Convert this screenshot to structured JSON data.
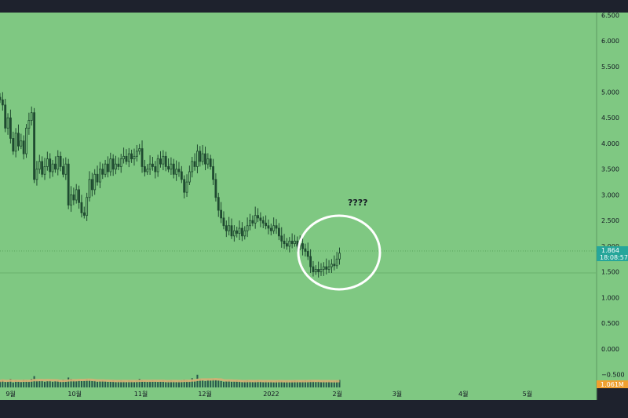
{
  "colors": {
    "background": "#7fc882",
    "frame": "#1e222d",
    "candle": "#1f4a30",
    "volume_bar": "#26574a",
    "volume_ma": "#d6b074",
    "price_badge": "#26a69a",
    "volume_badge": "#f0a030",
    "circle": "#ffffff"
  },
  "annotation": {
    "text": "????"
  },
  "price_badge": {
    "price": "1.864",
    "countdown": "18:08:57"
  },
  "volume_badge": {
    "text": "1.061M"
  },
  "chart_data": {
    "type": "candlestick",
    "yaxis": {
      "ticks": [
        "6.500",
        "6.000",
        "5.500",
        "5.000",
        "4.500",
        "4.000",
        "3.500",
        "3.000",
        "2.500",
        "2.000",
        "1.500",
        "1.000",
        "0.500",
        "0.000",
        "−0.500"
      ],
      "range": [
        -0.75,
        6.55
      ]
    },
    "xaxis": {
      "ticks": [
        "9월",
        "10월",
        "11월",
        "12월",
        "2022",
        "2월",
        "3월",
        "4월",
        "5월"
      ]
    },
    "grid": false,
    "series": [
      {
        "kind": "daily-candles",
        "x_start": "2021-09-01",
        "x_end": "2022-02-07",
        "close": [
          4.85,
          4.75,
          4.3,
          4.5,
          4.1,
          3.85,
          4.2,
          3.95,
          4.05,
          3.8,
          4.3,
          4.45,
          4.6,
          3.3,
          3.5,
          3.65,
          3.4,
          3.55,
          3.7,
          3.45,
          3.6,
          3.5,
          3.75,
          3.55,
          3.4,
          3.6,
          2.8,
          3.0,
          2.9,
          3.1,
          2.85,
          2.65,
          2.6,
          2.95,
          3.3,
          3.1,
          3.4,
          3.25,
          3.5,
          3.4,
          3.6,
          3.45,
          3.7,
          3.5,
          3.6,
          3.55,
          3.7,
          3.75,
          3.65,
          3.8,
          3.7,
          3.75,
          3.85,
          3.9,
          3.55,
          3.45,
          3.5,
          3.6,
          3.55,
          3.45,
          3.7,
          3.6,
          3.75,
          3.55,
          3.5,
          3.6,
          3.4,
          3.5,
          3.45,
          3.3,
          3.05,
          3.25,
          3.45,
          3.65,
          3.55,
          3.85,
          3.65,
          3.8,
          3.6,
          3.7,
          3.55,
          3.3,
          2.95,
          2.7,
          2.55,
          2.4,
          2.3,
          2.4,
          2.2,
          2.3,
          2.25,
          2.35,
          2.2,
          2.3,
          2.4,
          2.5,
          2.45,
          2.6,
          2.55,
          2.5,
          2.45,
          2.4,
          2.35,
          2.3,
          2.4,
          2.35,
          2.2,
          2.1,
          2.05,
          2.0,
          2.1,
          2.05,
          2.1,
          2.0,
          2.05,
          1.95,
          1.9,
          1.8,
          1.6,
          1.5,
          1.55,
          1.5,
          1.55,
          1.6,
          1.55,
          1.6,
          1.65,
          1.62,
          1.75,
          1.864
        ]
      }
    ],
    "volume": {
      "values": [
        0.9,
        1.1,
        0.8,
        0.9,
        1.2,
        0.7,
        1.0,
        0.9,
        0.8,
        1.1,
        1.0,
        0.9,
        1.2,
        1.6,
        1.0,
        0.9,
        1.0,
        0.8,
        0.9,
        1.0,
        0.8,
        0.9,
        1.0,
        0.9,
        1.1,
        1.0,
        1.4,
        1.2,
        1.0,
        0.9,
        1.1,
        0.9,
        1.0,
        1.2,
        1.1,
        0.9,
        1.0,
        0.8,
        0.9,
        1.0,
        0.9,
        0.8,
        0.9,
        1.0,
        0.8,
        0.9,
        1.0,
        0.9,
        0.8,
        1.0,
        0.9,
        0.8,
        1.0,
        1.2,
        1.0,
        0.9,
        0.8,
        0.9,
        1.0,
        0.9,
        0.8,
        0.9,
        1.0,
        0.8,
        0.9,
        1.0,
        0.9,
        0.8,
        0.9,
        1.0,
        1.1,
        1.0,
        0.9,
        1.3,
        1.0,
        1.8,
        1.2,
        1.0,
        0.9,
        1.1,
        1.0,
        1.2,
        1.1,
        1.0,
        0.9,
        0.8,
        0.9,
        1.0,
        0.8,
        0.9,
        1.0,
        0.9,
        0.8,
        0.9,
        1.0,
        0.9,
        0.8,
        0.9,
        1.0,
        0.9,
        0.8,
        0.9,
        0.8,
        0.9,
        0.8,
        0.9,
        1.0,
        0.9,
        0.8,
        0.9,
        0.8,
        0.9,
        1.0,
        0.9,
        0.8,
        0.9,
        1.0,
        0.9,
        1.0,
        0.9,
        0.8,
        0.9,
        0.8,
        0.9,
        0.8,
        0.9,
        0.8,
        0.9,
        1.0,
        1.061
      ],
      "max": 2.0
    }
  }
}
